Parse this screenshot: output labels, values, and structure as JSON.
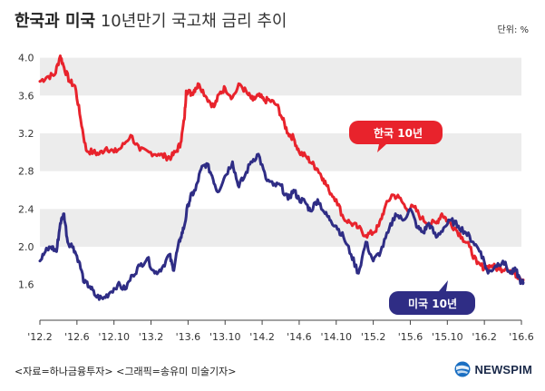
{
  "header": {
    "title_bold": "한국과 미국",
    "title_light": "10년만기 국고채 금리 추이",
    "unit": "단위: %"
  },
  "footer": {
    "source": "<자료=하나금융투자> <그래픽=송유미 미술기자>",
    "brand": "NEWSPIM"
  },
  "colors": {
    "korea": "#e8232c",
    "us": "#2f2d85",
    "band": "#ececec"
  },
  "chart_data": {
    "type": "line",
    "title": "한국과 미국 10년만기 국고채 금리 추이",
    "unit": "%",
    "xlabel": "",
    "ylabel": "",
    "ylim": [
      1.3,
      4.15
    ],
    "yticks": [
      "4.0",
      "3.6",
      "3.2",
      "2.8",
      "2.4",
      "2.0",
      "1.6"
    ],
    "xticks": [
      "'12.2",
      "'12.6",
      "'12.10",
      "'13.2",
      "'13.6",
      "'13.10",
      "'14.2",
      "'14.6",
      "'14.10",
      "'15.2",
      "'15.6",
      "'15.10",
      "'16.2",
      "'16.6"
    ],
    "legend": [
      {
        "label": "한국 10년",
        "position": "middle-right"
      },
      {
        "label": "미국 10년",
        "position": "bottom-right"
      }
    ],
    "series": [
      {
        "name": "한국 10년",
        "color": "#e8232c",
        "x": [
          0,
          0.2,
          0.4,
          0.55,
          0.65,
          0.8,
          0.95,
          1.1,
          1.25,
          1.45,
          1.6,
          1.8,
          2.0,
          2.2,
          2.45,
          2.7,
          2.95,
          3.2,
          3.4,
          3.55,
          3.7,
          3.8,
          3.9,
          3.95,
          4.1,
          4.2,
          4.3,
          4.5,
          4.7,
          4.85,
          5.0,
          5.2,
          5.4,
          5.6,
          5.75,
          5.9,
          6.05,
          6.2,
          6.4,
          6.55,
          6.7,
          6.85,
          7.0,
          7.2,
          7.35,
          7.5,
          7.65,
          7.8,
          8.0,
          8.2,
          8.4,
          8.6,
          8.8,
          9.0,
          9.15,
          9.3,
          9.5,
          9.7,
          9.9,
          10.1,
          10.3,
          10.5,
          10.7,
          10.85,
          11.0,
          11.2,
          11.4,
          11.6,
          11.8,
          12.0,
          12.2,
          12.4,
          12.6,
          12.8,
          12.95,
          13.05
        ],
        "values": [
          3.75,
          3.8,
          3.82,
          4.02,
          3.9,
          3.75,
          3.7,
          3.35,
          3.02,
          3.0,
          2.98,
          3.05,
          3.0,
          3.05,
          3.18,
          3.02,
          3.0,
          2.98,
          2.95,
          2.95,
          3.02,
          3.1,
          3.35,
          3.65,
          3.62,
          3.68,
          3.72,
          3.58,
          3.48,
          3.62,
          3.68,
          3.58,
          3.72,
          3.62,
          3.55,
          3.6,
          3.55,
          3.55,
          3.5,
          3.35,
          3.2,
          3.15,
          3.0,
          2.95,
          2.88,
          2.82,
          2.72,
          2.6,
          2.5,
          2.3,
          2.25,
          2.2,
          2.12,
          2.15,
          2.22,
          2.4,
          2.55,
          2.52,
          2.4,
          2.42,
          2.3,
          2.25,
          2.25,
          2.35,
          2.28,
          2.2,
          2.1,
          2.0,
          1.82,
          1.78,
          1.8,
          1.76,
          1.78,
          1.72,
          1.68,
          1.65
        ]
      },
      {
        "name": "미국 10년",
        "color": "#2f2d85",
        "x": [
          0,
          0.15,
          0.3,
          0.45,
          0.55,
          0.65,
          0.75,
          0.9,
          1.05,
          1.2,
          1.35,
          1.5,
          1.7,
          1.9,
          2.1,
          2.3,
          2.5,
          2.7,
          2.9,
          3.1,
          3.3,
          3.5,
          3.6,
          3.7,
          3.8,
          3.9,
          4.0,
          4.1,
          4.2,
          4.35,
          4.5,
          4.65,
          4.8,
          5.0,
          5.2,
          5.35,
          5.5,
          5.7,
          5.9,
          6.1,
          6.3,
          6.5,
          6.7,
          6.85,
          7.0,
          7.15,
          7.3,
          7.5,
          7.7,
          7.85,
          8.0,
          8.2,
          8.4,
          8.6,
          8.8,
          9.0,
          9.2,
          9.4,
          9.6,
          9.8,
          10.0,
          10.2,
          10.35,
          10.5,
          10.7,
          10.9,
          11.1,
          11.3,
          11.5,
          11.7,
          11.9,
          12.1,
          12.3,
          12.5,
          12.7,
          12.85,
          13.0,
          13.05
        ],
        "values": [
          1.85,
          1.95,
          2.0,
          1.95,
          2.25,
          2.35,
          2.05,
          2.0,
          1.85,
          1.62,
          1.58,
          1.48,
          1.45,
          1.52,
          1.6,
          1.55,
          1.7,
          1.8,
          1.88,
          1.72,
          1.78,
          1.92,
          1.75,
          1.95,
          2.1,
          2.22,
          2.45,
          2.55,
          2.6,
          2.82,
          2.88,
          2.75,
          2.58,
          2.75,
          2.9,
          2.65,
          2.72,
          2.9,
          2.98,
          2.72,
          2.65,
          2.65,
          2.5,
          2.6,
          2.5,
          2.48,
          2.38,
          2.5,
          2.35,
          2.28,
          2.22,
          2.1,
          1.92,
          1.72,
          2.05,
          1.85,
          1.95,
          2.15,
          2.35,
          2.28,
          2.4,
          2.2,
          2.15,
          2.25,
          2.1,
          2.2,
          2.28,
          2.22,
          2.15,
          2.05,
          1.95,
          1.72,
          1.8,
          1.85,
          1.72,
          1.75,
          1.62,
          1.62
        ]
      }
    ]
  }
}
